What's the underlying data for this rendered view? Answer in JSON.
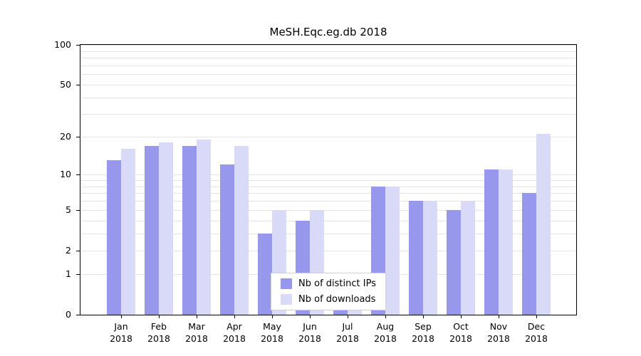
{
  "colors": {
    "background": "#ffffff",
    "axis": "#000000",
    "gridline": "#e3e3e3",
    "legend_border": "#cfcfcf",
    "distinct_ips": "#9797ee",
    "downloads": "#d9d9f8"
  },
  "chart_data": {
    "type": "bar",
    "title": "MeSH.Eqc.eg.db 2018",
    "categories": [
      "Jan\n2018",
      "Feb\n2018",
      "Mar\n2018",
      "Apr\n2018",
      "May\n2018",
      "Jun\n2018",
      "Jul\n2018",
      "Aug\n2018",
      "Sep\n2018",
      "Oct\n2018",
      "Nov\n2018",
      "Dec\n2018"
    ],
    "series": [
      {
        "name": "Nb of distinct IPs",
        "color": "#9797ee",
        "values": [
          13,
          17,
          17,
          12,
          3,
          4,
          1,
          8,
          6,
          5,
          11,
          7
        ]
      },
      {
        "name": "Nb of downloads",
        "color": "#d9d9f8",
        "values": [
          16,
          18,
          19,
          17,
          5,
          5,
          1,
          8,
          6,
          6,
          11,
          21
        ]
      }
    ],
    "xlabel": "",
    "ylabel": "",
    "y_axis": {
      "scale": "log1p",
      "ticks": [
        0,
        1,
        2,
        5,
        10,
        20,
        50,
        100
      ],
      "max": 100
    },
    "ylim": [
      0,
      100
    ],
    "gridlines": [
      1,
      2,
      3,
      4,
      5,
      6,
      7,
      8,
      9,
      10,
      20,
      30,
      40,
      50,
      60,
      70,
      80,
      90,
      100
    ],
    "grid": "horizontal",
    "legend_position": "bottom-center-inside"
  }
}
